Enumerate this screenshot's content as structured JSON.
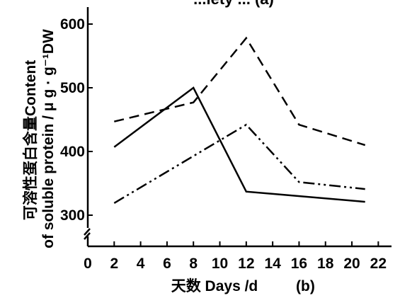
{
  "chart_data": {
    "type": "line",
    "title": "...iety ... (a)",
    "xlabel": "天数 Days /d",
    "xlabel_suffix": "(b)",
    "ylabel_line1": "可溶性蛋白含量Content",
    "ylabel_line2": "of soluble protein / μ g · g⁻¹DW",
    "x_ticks": [
      0,
      2,
      4,
      6,
      8,
      10,
      12,
      14,
      16,
      18,
      20,
      22
    ],
    "y_ticks": [
      300,
      400,
      500,
      600
    ],
    "xlim": [
      0,
      23
    ],
    "ylim": [
      300,
      620
    ],
    "axis_break": true,
    "grid": false,
    "series": [
      {
        "style": "solid",
        "x": [
          2,
          8,
          12,
          21
        ],
        "y": [
          407,
          500,
          337,
          321
        ]
      },
      {
        "style": "dashed",
        "x": [
          2,
          8,
          12,
          16,
          21
        ],
        "y": [
          447,
          477,
          578,
          442,
          410
        ]
      },
      {
        "style": "dash-dot-dot",
        "x": [
          2,
          12,
          16,
          21
        ],
        "y": [
          319,
          442,
          352,
          341
        ]
      }
    ]
  }
}
